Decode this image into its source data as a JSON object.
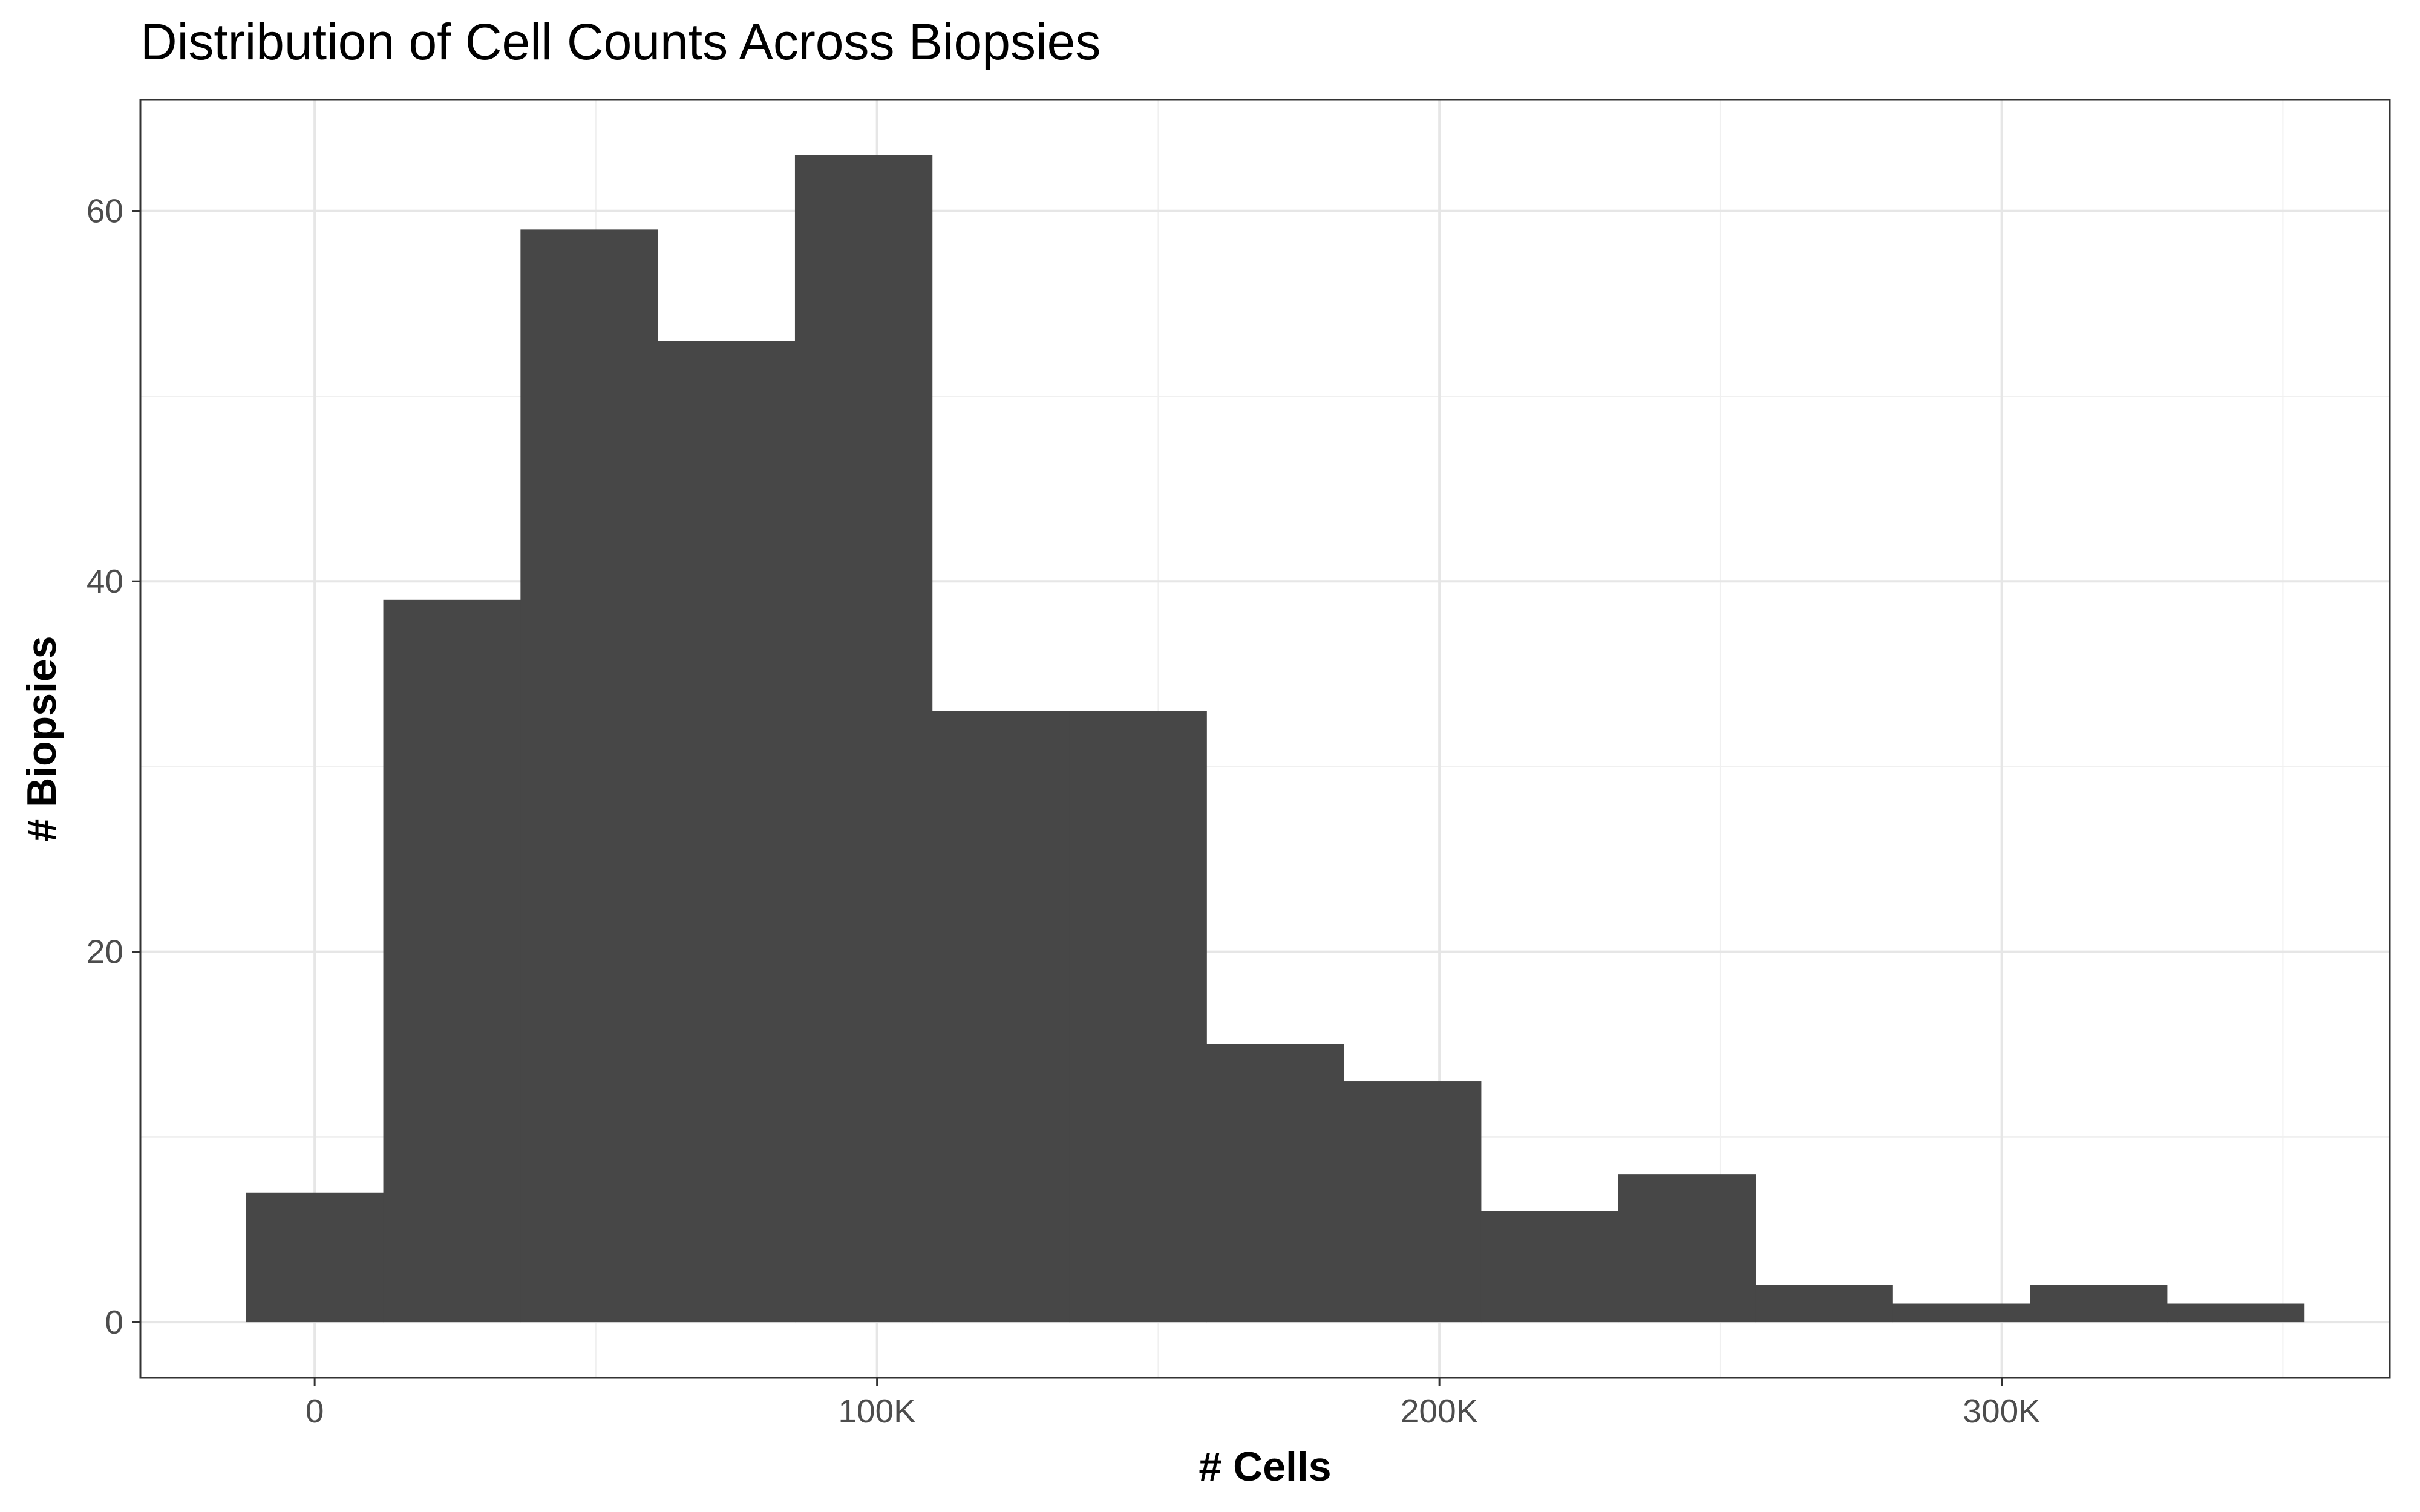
{
  "chart_data": {
    "type": "bar",
    "subtype": "histogram",
    "title": "Distribution of Cell Counts Across Biopsies",
    "xlabel": "# Cells",
    "ylabel": "# Biopsies",
    "xlim": [
      -31000,
      369000
    ],
    "ylim": [
      -3,
      66
    ],
    "x_ticks": [
      0,
      100000,
      200000,
      300000
    ],
    "x_tick_labels": [
      "0",
      "100K",
      "200K",
      "300K"
    ],
    "x_minor_ticks": [
      50000,
      150000,
      250000,
      350000
    ],
    "y_ticks": [
      0,
      20,
      40,
      60
    ],
    "y_tick_labels": [
      "0",
      "20",
      "40",
      "60"
    ],
    "y_minor_ticks": [
      10,
      30,
      50
    ],
    "grid": true,
    "bin_width": 24400,
    "bins": [
      {
        "x0": -12200,
        "x1": 12200,
        "count": 7
      },
      {
        "x0": 12200,
        "x1": 36600,
        "count": 39
      },
      {
        "x0": 36600,
        "x1": 61000,
        "count": 59
      },
      {
        "x0": 61000,
        "x1": 85400,
        "count": 53
      },
      {
        "x0": 85400,
        "x1": 109800,
        "count": 63
      },
      {
        "x0": 109800,
        "x1": 134200,
        "count": 33
      },
      {
        "x0": 134200,
        "x1": 158600,
        "count": 33
      },
      {
        "x0": 158600,
        "x1": 183000,
        "count": 15
      },
      {
        "x0": 183000,
        "x1": 207400,
        "count": 13
      },
      {
        "x0": 207400,
        "x1": 231800,
        "count": 6
      },
      {
        "x0": 231800,
        "x1": 256200,
        "count": 8
      },
      {
        "x0": 256200,
        "x1": 280600,
        "count": 2
      },
      {
        "x0": 280600,
        "x1": 305000,
        "count": 1
      },
      {
        "x0": 305000,
        "x1": 329400,
        "count": 2
      },
      {
        "x0": 329400,
        "x1": 353800,
        "count": 1
      }
    ],
    "colors": {
      "bar": "#474747",
      "panel_border": "#333333",
      "grid_major": "#e6e6e6",
      "grid_minor": "#f0f0f0",
      "tick": "#333333"
    }
  }
}
